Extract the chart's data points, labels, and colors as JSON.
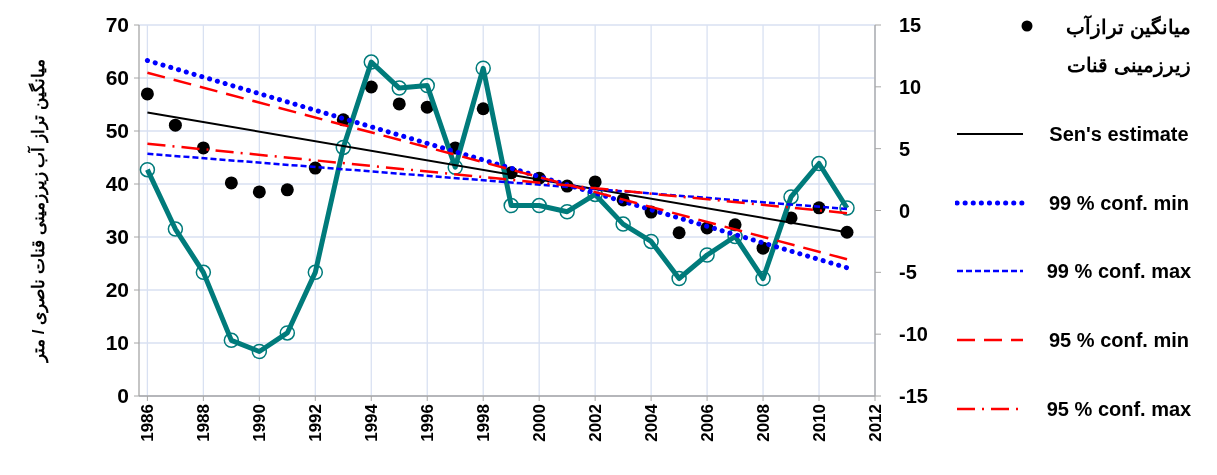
{
  "chart_data": {
    "type": "line",
    "ylabel": "میانگین تراز آب زیرزمینی قنات ناصری / متر",
    "xlim": [
      1985.7,
      2012
    ],
    "xticks": [
      1986,
      1988,
      1990,
      1992,
      1994,
      1996,
      1998,
      2000,
      2002,
      2004,
      2006,
      2008,
      2010,
      2012
    ],
    "ylim": [
      0,
      70
    ],
    "yticks": [
      0,
      10,
      20,
      30,
      40,
      50,
      60,
      70
    ],
    "y2lim": [
      -15,
      15
    ],
    "y2ticks": [
      -15,
      -10,
      -5,
      0,
      5,
      10,
      15
    ],
    "grid": true,
    "legend": "right",
    "series": [
      {
        "name": "میانگین ترازآب زیرزمینی قنات",
        "type": "scatter",
        "marker": "circle",
        "color": "#000000",
        "x": [
          1986,
          1987,
          1988,
          1989,
          1990,
          1991,
          1992,
          1993,
          1994,
          1995,
          1996,
          1997,
          1998,
          1999,
          2000,
          2001,
          2002,
          2003,
          2004,
          2005,
          2006,
          2007,
          2008,
          2009,
          2010,
          2011
        ],
        "values": [
          57,
          51.1,
          46.8,
          40.2,
          38.5,
          38.9,
          43,
          52.1,
          58.3,
          55.1,
          54.5,
          46.8,
          54.2,
          42.1,
          41.1,
          39.6,
          40.4,
          37,
          34.7,
          30.8,
          31.7,
          32.3,
          27.9,
          33.6,
          35.5,
          30.9
        ]
      },
      {
        "axis": "y2",
        "marker": "circle",
        "line_style": "solid",
        "color": "#007b7b",
        "x": [
          1986,
          1987,
          1988,
          1989,
          1990,
          1991,
          1992,
          1993,
          1994,
          1995,
          1996,
          1997,
          1998,
          1999,
          2000,
          2001,
          2002,
          2003,
          2004,
          2005,
          2006,
          2007,
          2008,
          2009,
          2010,
          2011
        ],
        "values": [
          3.3,
          -1.5,
          -5,
          -10.5,
          -11.4,
          -9.9,
          -5,
          5.1,
          12,
          9.9,
          10.1,
          3.5,
          11.5,
          0.4,
          0.4,
          -0.1,
          1.3,
          -1.1,
          -2.5,
          -5.5,
          -3.6,
          -2.1,
          -5.5,
          1.1,
          3.8,
          0.2
        ]
      },
      {
        "name": "Sen's estimate",
        "line_style": "solid",
        "color": "#000000",
        "x": [
          1986,
          2011
        ],
        "values": [
          53.5,
          30.9
        ]
      },
      {
        "name": "99 % conf. min",
        "line_style": "dotted",
        "color": "#0000ff",
        "x": [
          1986,
          2011
        ],
        "values": [
          63.3,
          24.2
        ]
      },
      {
        "name": "99 % conf. max",
        "line_style": "dashed",
        "color": "#0000ff",
        "x": [
          1986,
          2011
        ],
        "values": [
          45.7,
          35.3
        ]
      },
      {
        "name": "95 % conf. min",
        "line_style": "longdash",
        "color": "#ff0000",
        "x": [
          1986,
          2011
        ],
        "values": [
          61,
          25.8
        ]
      },
      {
        "name": "95 % conf. max",
        "line_style": "dashdot",
        "color": "#ff0000",
        "x": [
          1986,
          2011
        ],
        "values": [
          47.6,
          34.5
        ]
      }
    ]
  }
}
